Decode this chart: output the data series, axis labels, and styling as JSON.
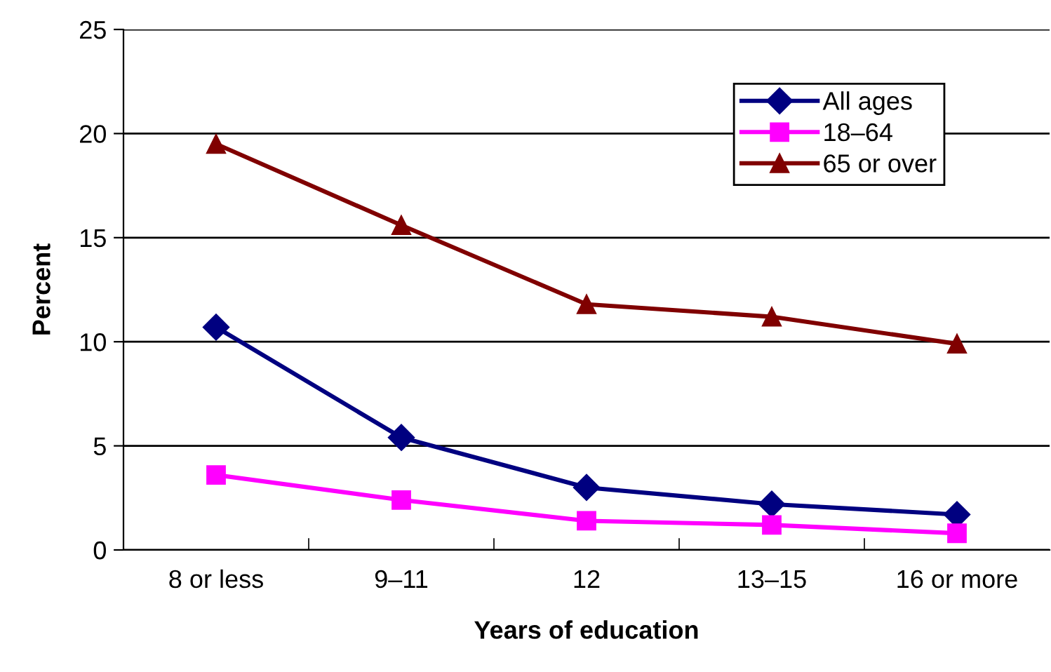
{
  "chart_data": {
    "type": "line",
    "xlabel": "Years of education",
    "ylabel": "Percent",
    "categories": [
      "8 or less",
      "9–11",
      "12",
      "13–15",
      "16 or more"
    ],
    "series": [
      {
        "name": "All ages",
        "color": "#000080",
        "marker": "diamond",
        "values": [
          10.7,
          5.4,
          3.0,
          2.2,
          1.7
        ]
      },
      {
        "name": "18–64",
        "color": "#ff00ff",
        "marker": "square",
        "values": [
          3.6,
          2.4,
          1.4,
          1.2,
          0.8
        ]
      },
      {
        "name": "65 or over",
        "color": "#800000",
        "marker": "triangle",
        "values": [
          19.5,
          15.6,
          11.8,
          11.2,
          9.9
        ]
      }
    ],
    "ylim": [
      0,
      25
    ],
    "yticks": [
      0,
      5,
      10,
      15,
      20,
      25
    ],
    "grid": "y",
    "legend": "top right",
    "line_style": "solid"
  }
}
